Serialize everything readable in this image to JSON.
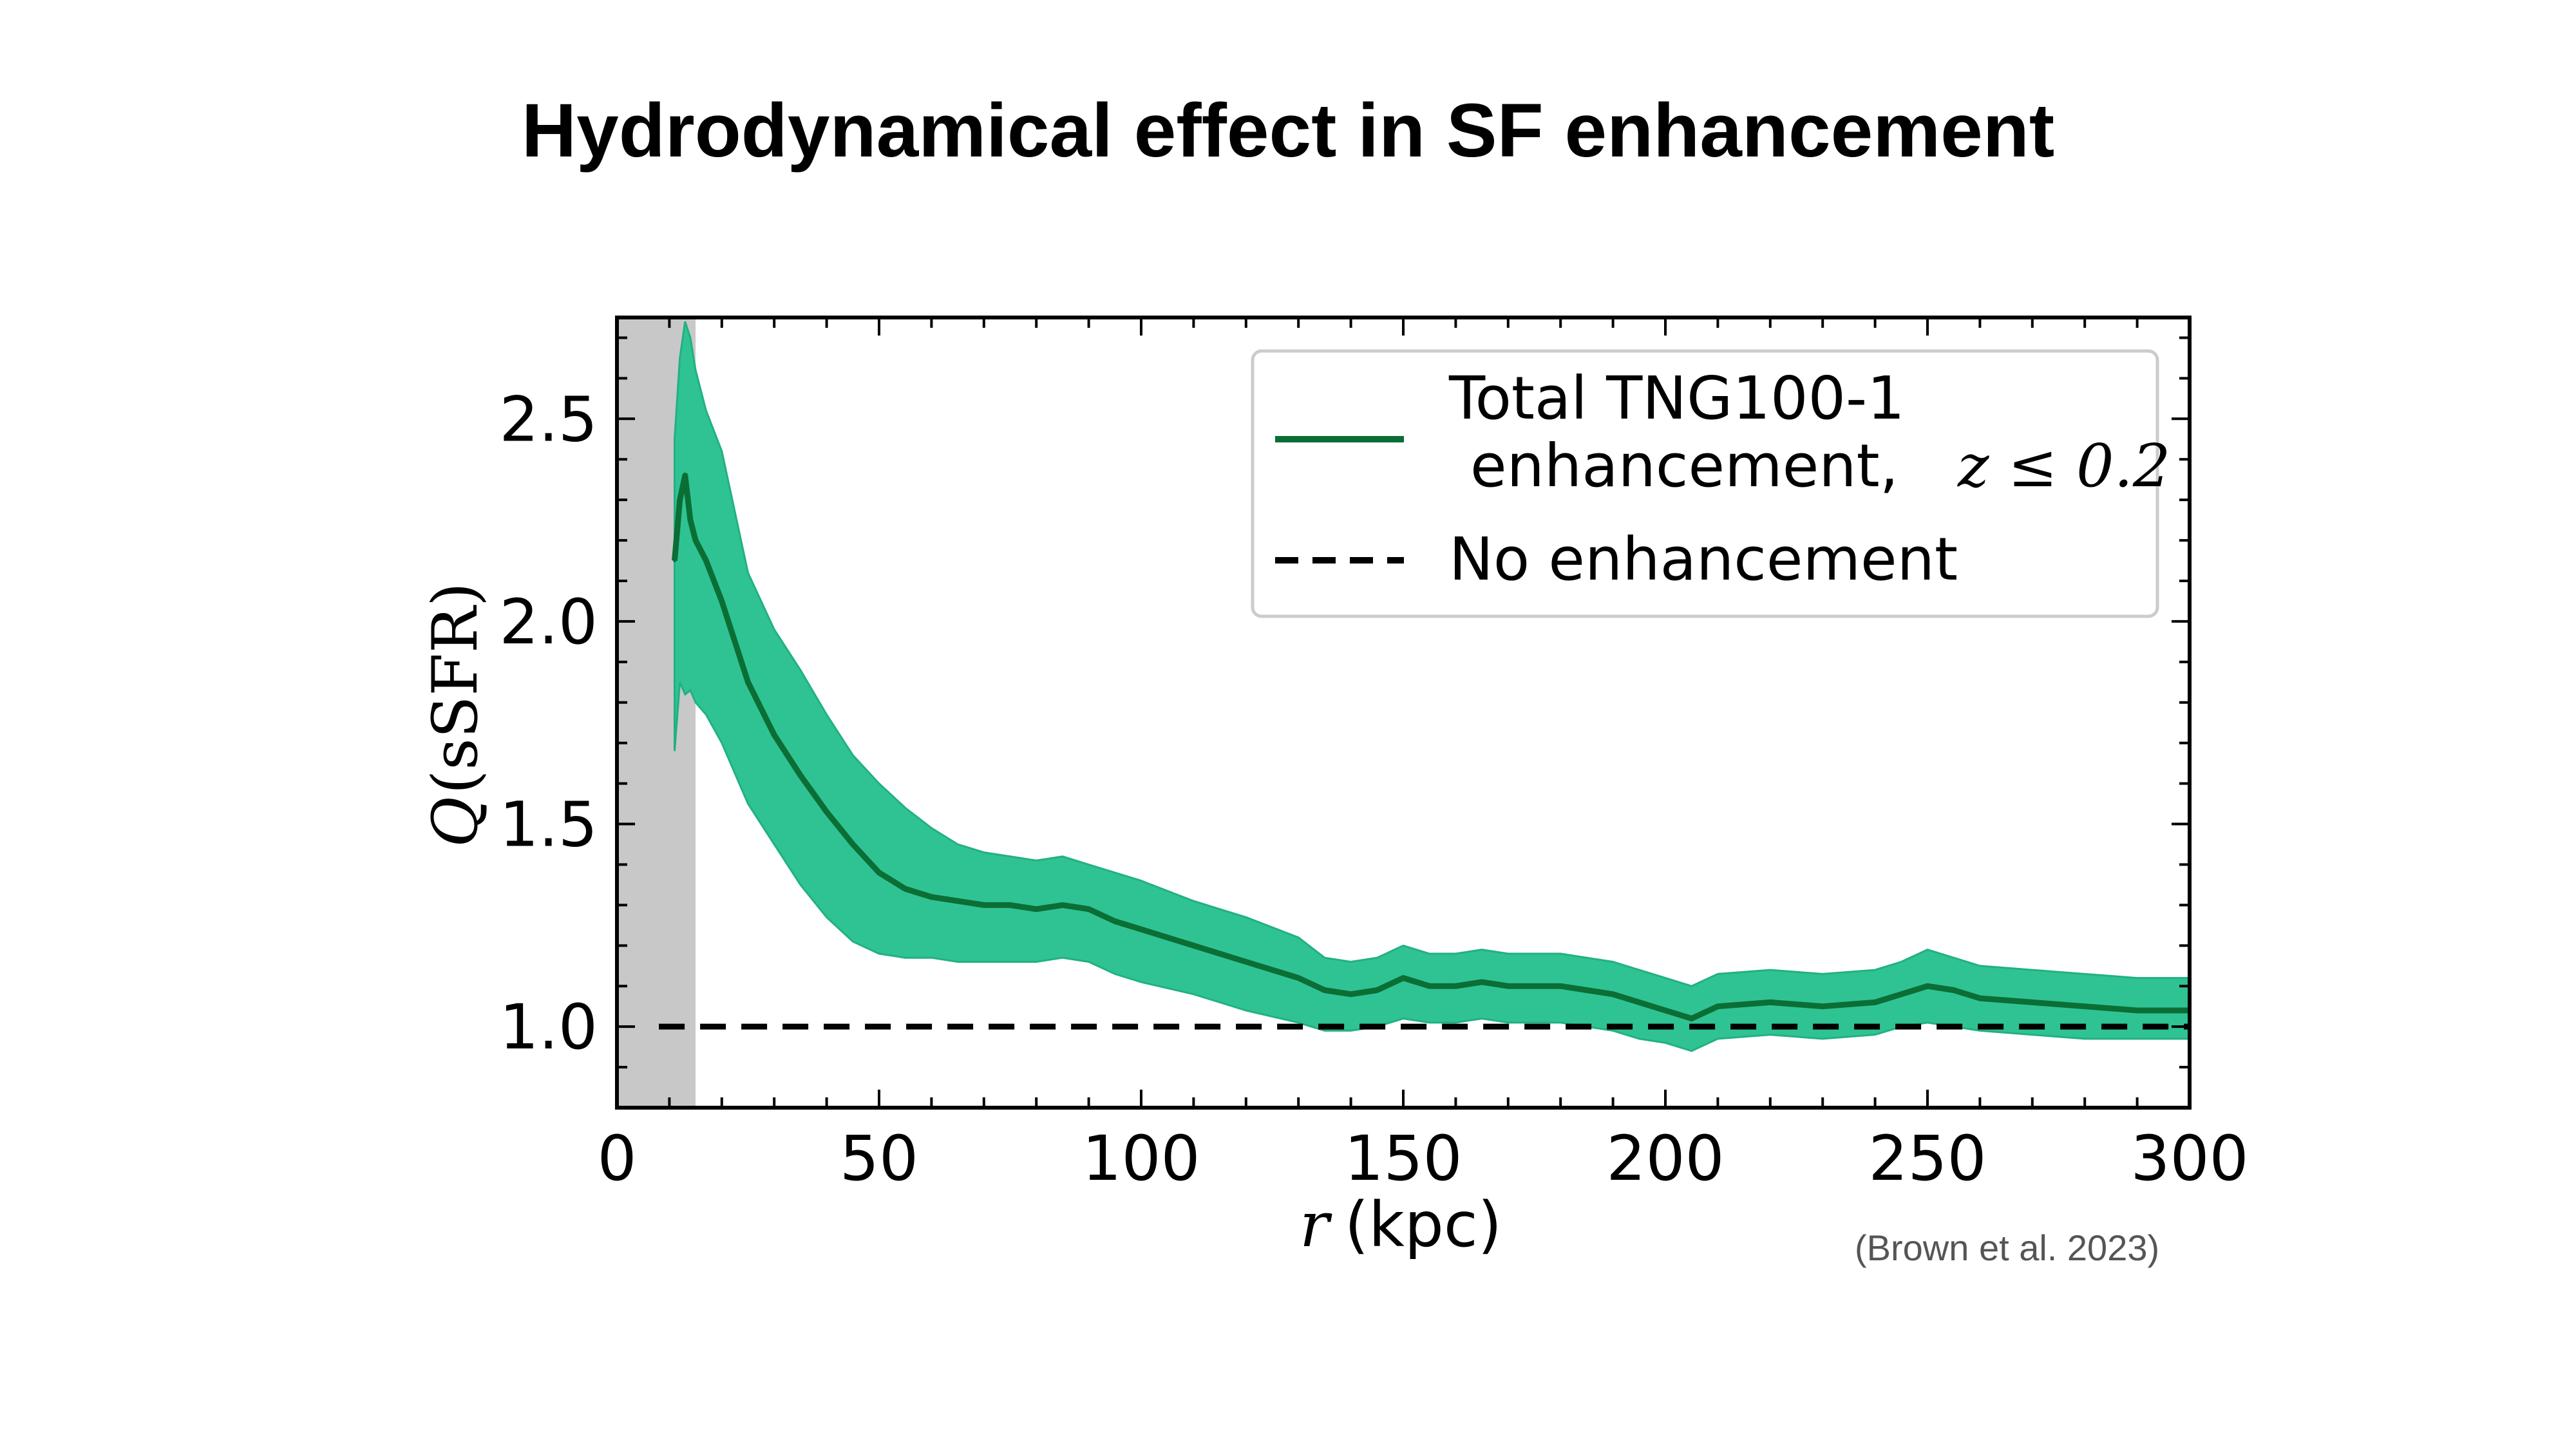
{
  "slide": {
    "title": "Hydrodynamical effect in SF enhancement",
    "citation": "(Brown et al. 2023)"
  },
  "colors": {
    "line": "#0b6e35",
    "band": "#2fc393",
    "band_edge": "#22b084",
    "shaded_region": "#c8c8c8",
    "baseline": "#000000"
  },
  "chart_data": {
    "type": "line",
    "title": "",
    "xlabel_symbol": "r",
    "xlabel_unit": "(kpc)",
    "ylabel_symbol": "Q",
    "ylabel_arg": "(sSFR)",
    "xlim": [
      0,
      300
    ],
    "ylim": [
      0.8,
      2.75
    ],
    "xticks": [
      0,
      50,
      100,
      150,
      200,
      250,
      300
    ],
    "xtick_labels": [
      "0",
      "50",
      "100",
      "150",
      "200",
      "250",
      "300"
    ],
    "yticks": [
      1.0,
      1.5,
      2.0,
      2.5
    ],
    "ytick_labels": [
      "1.0",
      "1.5",
      "2.0",
      "2.5"
    ],
    "shaded_x_range": [
      0,
      15
    ],
    "legend_position": "top-right",
    "legend": {
      "series_line1": "Total TNG100-1",
      "series_line2": "enhancement,",
      "series_math": "z ≤ 0.2",
      "baseline_label": "No enhancement"
    },
    "baseline_y": 1.0,
    "baseline_x_start": 8,
    "series": [
      {
        "name": "Total TNG100-1 enhancement, z ≤ 0.2",
        "x": [
          11,
          12,
          13,
          14,
          15,
          17,
          20,
          25,
          30,
          35,
          40,
          45,
          50,
          55,
          60,
          65,
          70,
          75,
          80,
          85,
          90,
          95,
          100,
          110,
          120,
          130,
          135,
          140,
          145,
          150,
          155,
          160,
          165,
          170,
          175,
          180,
          185,
          190,
          195,
          200,
          205,
          210,
          220,
          230,
          240,
          245,
          250,
          255,
          260,
          270,
          280,
          290,
          300
        ],
        "y": [
          2.15,
          2.3,
          2.36,
          2.25,
          2.2,
          2.15,
          2.05,
          1.85,
          1.72,
          1.62,
          1.53,
          1.45,
          1.38,
          1.34,
          1.32,
          1.31,
          1.3,
          1.3,
          1.29,
          1.3,
          1.29,
          1.26,
          1.24,
          1.2,
          1.16,
          1.12,
          1.09,
          1.08,
          1.09,
          1.12,
          1.1,
          1.1,
          1.11,
          1.1,
          1.1,
          1.1,
          1.09,
          1.08,
          1.06,
          1.04,
          1.02,
          1.05,
          1.06,
          1.05,
          1.06,
          1.08,
          1.1,
          1.09,
          1.07,
          1.06,
          1.05,
          1.04,
          1.04
        ],
        "lower": [
          1.68,
          1.85,
          1.82,
          1.83,
          1.8,
          1.77,
          1.7,
          1.55,
          1.45,
          1.35,
          1.27,
          1.21,
          1.18,
          1.17,
          1.17,
          1.16,
          1.16,
          1.16,
          1.16,
          1.17,
          1.16,
          1.13,
          1.11,
          1.08,
          1.04,
          1.01,
          0.99,
          0.99,
          1.0,
          1.02,
          1.01,
          1.01,
          1.02,
          1.01,
          1.01,
          1.01,
          1.0,
          0.99,
          0.97,
          0.96,
          0.94,
          0.97,
          0.98,
          0.97,
          0.98,
          1.0,
          1.01,
          1.0,
          0.99,
          0.98,
          0.97,
          0.97,
          0.97
        ],
        "upper": [
          2.45,
          2.65,
          2.74,
          2.7,
          2.62,
          2.52,
          2.42,
          2.12,
          1.98,
          1.88,
          1.77,
          1.67,
          1.6,
          1.54,
          1.49,
          1.45,
          1.43,
          1.42,
          1.41,
          1.42,
          1.4,
          1.38,
          1.36,
          1.31,
          1.27,
          1.22,
          1.17,
          1.16,
          1.17,
          1.2,
          1.18,
          1.18,
          1.19,
          1.18,
          1.18,
          1.18,
          1.17,
          1.16,
          1.14,
          1.12,
          1.1,
          1.13,
          1.14,
          1.13,
          1.14,
          1.16,
          1.19,
          1.17,
          1.15,
          1.14,
          1.13,
          1.12,
          1.12
        ]
      }
    ]
  }
}
